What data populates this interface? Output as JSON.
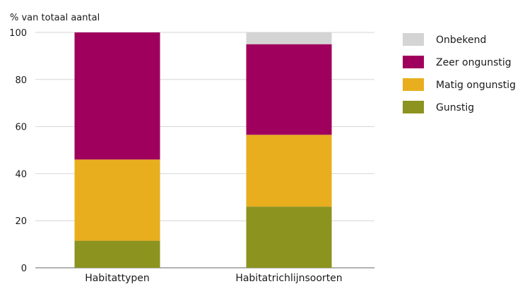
{
  "chart_data": {
    "type": "bar",
    "stacked": true,
    "title": "",
    "ylabel": "% van totaal aantal",
    "xlabel": "",
    "ylim": [
      0,
      100
    ],
    "yticks": [
      0,
      20,
      40,
      60,
      80,
      100
    ],
    "categories": [
      "Habitattypen",
      "Habitatrichlijnsoorten"
    ],
    "series": [
      {
        "name": "Gunstig",
        "color": "#8c931e",
        "values": [
          11.5,
          26
        ]
      },
      {
        "name": "Matig ongunstig",
        "color": "#e8ae1e",
        "values": [
          34.5,
          30.5
        ]
      },
      {
        "name": "Zeer ongunstig",
        "color": "#a0005d",
        "values": [
          54,
          38.5
        ]
      },
      {
        "name": "Onbekend",
        "color": "#d4d4d4",
        "values": [
          0,
          5
        ]
      }
    ],
    "legend": {
      "position": "right",
      "order": [
        "Onbekend",
        "Zeer ongunstig",
        "Matig ongunstig",
        "Gunstig"
      ]
    },
    "grid": true
  }
}
